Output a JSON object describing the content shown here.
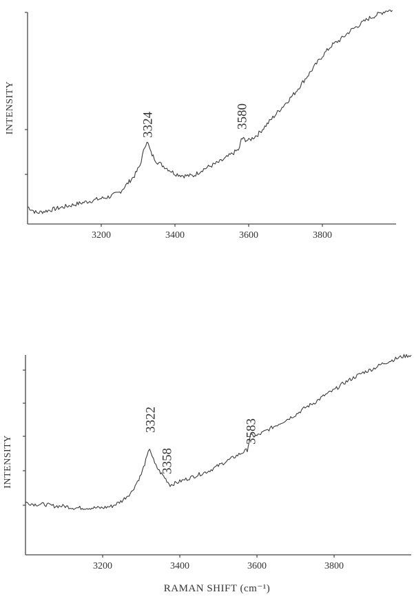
{
  "chart_data": [
    {
      "type": "line",
      "title": "",
      "xlabel": "",
      "ylabel": "INTENSITY",
      "xlim": [
        3000,
        4000
      ],
      "ylim": [
        0,
        100
      ],
      "x_ticks": [
        3200,
        3400,
        3600,
        3800
      ],
      "y_ticks": [],
      "peak_labels": [
        {
          "text": "3324",
          "x": 3324
        },
        {
          "text": "3580",
          "x": 3580
        }
      ],
      "series": [
        {
          "x": [
            3000,
            3025,
            3050,
            3075,
            3100,
            3125,
            3150,
            3175,
            3200,
            3225,
            3250,
            3270,
            3290,
            3305,
            3318,
            3324,
            3335,
            3350,
            3375,
            3400,
            3425,
            3450,
            3475,
            3500,
            3525,
            3550,
            3575,
            3580,
            3600,
            3625,
            3650,
            3675,
            3700,
            3725,
            3750,
            3775,
            3800,
            3825,
            3850,
            3875,
            3900,
            3925,
            3950,
            3975,
            3990
          ],
          "y": [
            5,
            2,
            3,
            4,
            5,
            6,
            7,
            8,
            9,
            10,
            12,
            16,
            20,
            25,
            34,
            37,
            31,
            27,
            24,
            21,
            20,
            20,
            23,
            25,
            27,
            30,
            33,
            38,
            37,
            40,
            45,
            50,
            55,
            60,
            66,
            72,
            78,
            83,
            86,
            90,
            93,
            96,
            98,
            100,
            100
          ]
        }
      ]
    },
    {
      "type": "line",
      "title": "",
      "xlabel": "RAMAN SHIFT (cm⁻¹)",
      "ylabel": "INTENSITY",
      "xlim": [
        3000,
        4000
      ],
      "ylim": [
        0,
        100
      ],
      "x_ticks": [
        3200,
        3400,
        3600,
        3800
      ],
      "y_ticks": [],
      "peak_labels": [
        {
          "text": "3322",
          "x": 3322
        },
        {
          "text": "3358",
          "x": 3358
        },
        {
          "text": "3583",
          "x": 3583
        }
      ],
      "series": [
        {
          "x": [
            3000,
            3025,
            3050,
            3075,
            3100,
            3125,
            3150,
            3175,
            3200,
            3225,
            3250,
            3275,
            3300,
            3315,
            3322,
            3335,
            3350,
            3358,
            3375,
            3400,
            3425,
            3450,
            3475,
            3500,
            3525,
            3550,
            3575,
            3583,
            3600,
            3625,
            3650,
            3675,
            3700,
            3725,
            3750,
            3775,
            3800,
            3825,
            3850,
            3875,
            3900,
            3925,
            3950,
            3975,
            4000
          ],
          "y": [
            16,
            15,
            15,
            14,
            14,
            13,
            13,
            13,
            13,
            14,
            17,
            22,
            32,
            42,
            47,
            38,
            33,
            31,
            26,
            28,
            30,
            32,
            34,
            37,
            40,
            43,
            46,
            54,
            54,
            57,
            60,
            63,
            66,
            70,
            73,
            77,
            80,
            84,
            87,
            90,
            92,
            95,
            97,
            99,
            100
          ]
        }
      ]
    }
  ]
}
